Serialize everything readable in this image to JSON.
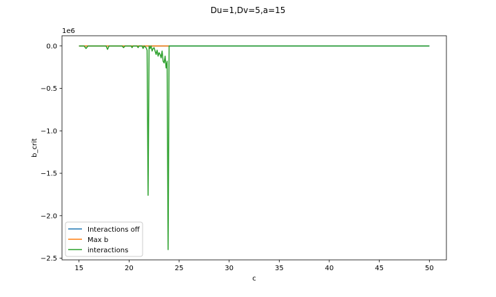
{
  "chart_data": {
    "type": "line",
    "title": "Du=1,Dv=5,a=15",
    "xlabel": "c",
    "ylabel": "b_crit",
    "y_offset_text": "1e6",
    "xlim": [
      13.3,
      51.7
    ],
    "ylim": [
      -2.52,
      0.12
    ],
    "x_ticks": [
      15,
      20,
      25,
      30,
      35,
      40,
      45,
      50
    ],
    "y_ticks": [
      0.0,
      -0.5,
      -1.0,
      -1.5,
      -2.0,
      -2.5
    ],
    "x_tick_labels": [
      "15",
      "20",
      "25",
      "30",
      "35",
      "40",
      "45",
      "50"
    ],
    "y_tick_labels": [
      "0.0",
      "−0.5",
      "−1.0",
      "−1.5",
      "−2.0",
      "−2.5"
    ],
    "legend_position": "lower-left",
    "series": [
      {
        "name": "Interactions off",
        "color": "#1f77b4",
        "x": [
          15,
          24,
          50
        ],
        "y": [
          0,
          0,
          0
        ]
      },
      {
        "name": "Max b",
        "color": "#ff7f0e",
        "x": [
          15,
          20,
          22,
          24
        ],
        "y": [
          0,
          0,
          0,
          0
        ]
      },
      {
        "name": "interactions",
        "color": "#2ca02c",
        "x": [
          15,
          15.5,
          15.7,
          15.9,
          17.7,
          17.85,
          18.0,
          19.3,
          19.45,
          19.6,
          20.2,
          20.3,
          20.4,
          20.8,
          20.9,
          21.0,
          21.3,
          21.4,
          21.5,
          21.7,
          21.8,
          21.9,
          22.0,
          22.1,
          22.2,
          22.3,
          22.4,
          22.5,
          22.6,
          22.7,
          22.8,
          22.9,
          23.0,
          23.1,
          23.2,
          23.3,
          23.4,
          23.5,
          23.6,
          23.7,
          23.8,
          23.9,
          24.0,
          24.1,
          24.2,
          24.3,
          50
        ],
        "y": [
          0,
          0,
          -0.03,
          0,
          0,
          -0.04,
          0,
          0,
          -0.02,
          0,
          0,
          -0.02,
          0,
          0,
          -0.02,
          0,
          0,
          -0.03,
          0,
          -0.02,
          -0.05,
          -1.76,
          0,
          -0.03,
          0,
          -0.06,
          -0.03,
          -0.02,
          -0.06,
          -0.1,
          -0.05,
          -0.12,
          -0.08,
          -0.1,
          -0.14,
          -0.06,
          -0.18,
          -0.2,
          -0.12,
          -0.26,
          -0.18,
          -2.4,
          0,
          0,
          0,
          0,
          0
        ]
      }
    ]
  }
}
